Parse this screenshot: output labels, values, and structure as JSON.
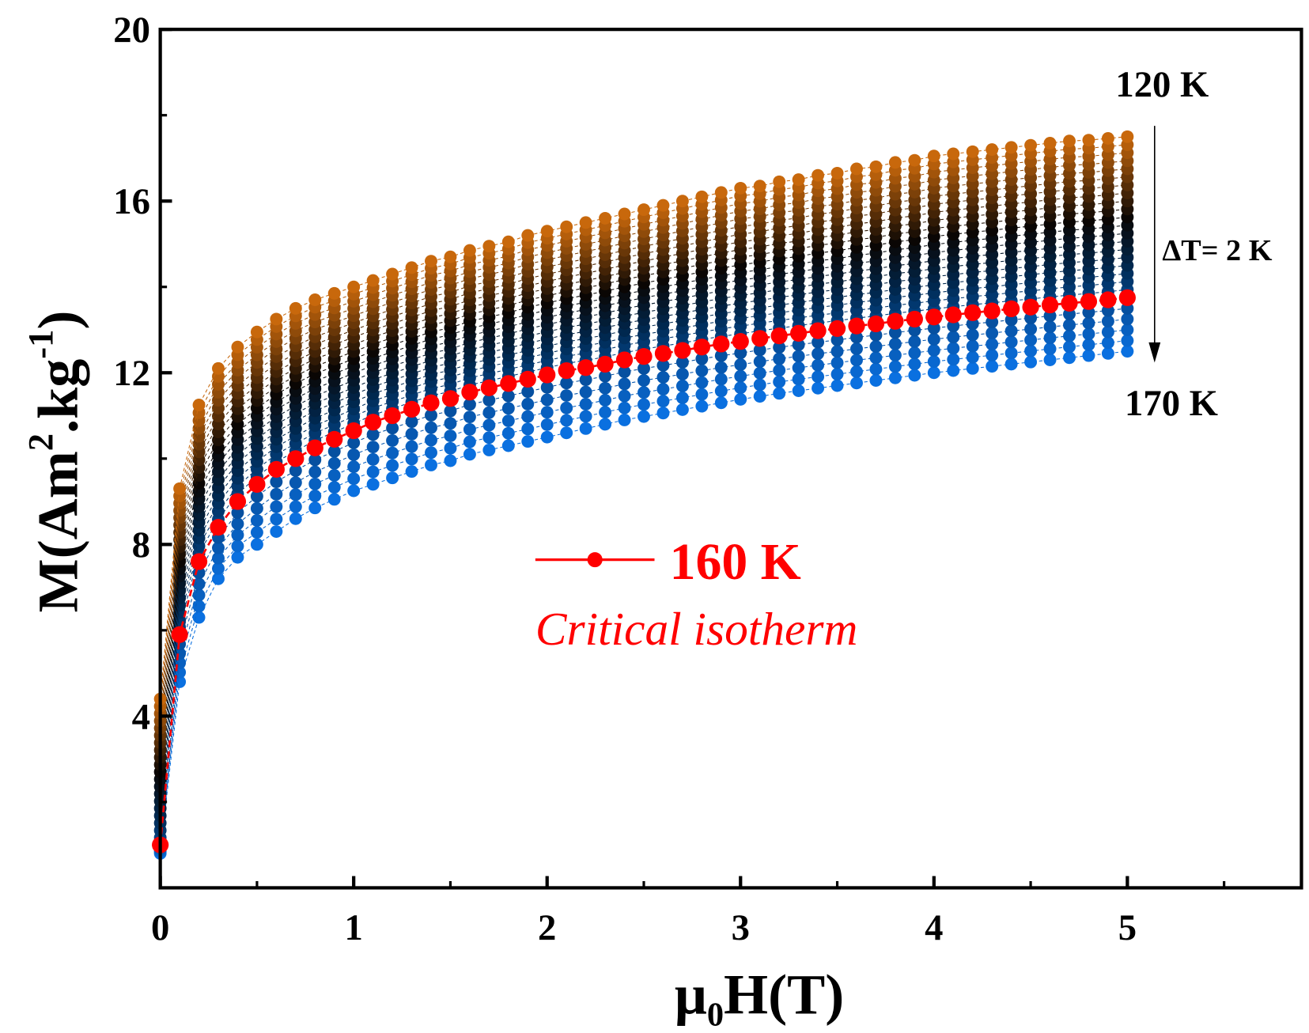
{
  "chart_data": {
    "type": "scatter",
    "xlabel": "μ0H(T)",
    "xlabel_main": "μ",
    "xlabel_sub": "0",
    "xlabel_rest": "H(T)",
    "ylabel": "M(Am2.kg-1)",
    "ylabel_parts": {
      "a": "M(Am",
      "sup1": "2",
      "b": ".kg",
      "sup2": "-1",
      "c": ")"
    },
    "xlim": [
      0,
      5.9
    ],
    "ylim": [
      0,
      20
    ],
    "xticks": [
      0,
      1,
      2,
      3,
      4,
      5
    ],
    "xtick_labels": [
      "0",
      "1",
      "2",
      "3",
      "4",
      "5"
    ],
    "xminor": [
      0.5,
      1.5,
      2.5,
      3.5,
      4.5,
      5.5
    ],
    "yticks": [
      4,
      8,
      12,
      16,
      20
    ],
    "ytick_labels": [
      "4",
      "8",
      "12",
      "16",
      "20"
    ],
    "yminor": [
      2,
      6,
      10,
      14,
      18
    ],
    "grid": false,
    "temperatures_K": [
      120,
      122,
      124,
      126,
      128,
      130,
      132,
      134,
      136,
      138,
      140,
      142,
      144,
      146,
      148,
      150,
      152,
      154,
      156,
      158,
      160,
      162,
      164,
      166,
      168,
      170
    ],
    "temperature_step_K": 2,
    "x": [
      0,
      0.1,
      0.2,
      0.3,
      0.4,
      0.5,
      0.6,
      0.7,
      0.8,
      0.9,
      1.0,
      1.1,
      1.2,
      1.3,
      1.4,
      1.5,
      1.6,
      1.7,
      1.8,
      1.9,
      2.0,
      2.1,
      2.2,
      2.3,
      2.4,
      2.5,
      2.6,
      2.7,
      2.8,
      2.9,
      3.0,
      3.1,
      3.2,
      3.3,
      3.4,
      3.5,
      3.6,
      3.7,
      3.8,
      3.9,
      4.0,
      4.1,
      4.2,
      4.3,
      4.4,
      4.5,
      4.6,
      4.7,
      4.8,
      4.9,
      5.0
    ],
    "anchor_series": [
      {
        "name": "120 K",
        "T": 120,
        "values": [
          4.4,
          9.3,
          11.25,
          12.1,
          12.6,
          12.95,
          13.25,
          13.5,
          13.7,
          13.85,
          14.0,
          14.15,
          14.3,
          14.45,
          14.6,
          14.7,
          14.85,
          14.95,
          15.05,
          15.2,
          15.3,
          15.4,
          15.5,
          15.6,
          15.7,
          15.8,
          15.9,
          16.0,
          16.1,
          16.2,
          16.3,
          16.35,
          16.45,
          16.5,
          16.6,
          16.65,
          16.75,
          16.8,
          16.9,
          16.95,
          17.05,
          17.1,
          17.15,
          17.2,
          17.25,
          17.3,
          17.35,
          17.4,
          17.42,
          17.46,
          17.5
        ]
      },
      {
        "name": "160 K",
        "T": 160,
        "values": [
          1.0,
          5.9,
          7.6,
          8.4,
          9.0,
          9.4,
          9.75,
          10.0,
          10.25,
          10.45,
          10.65,
          10.85,
          11.0,
          11.15,
          11.3,
          11.4,
          11.55,
          11.65,
          11.75,
          11.85,
          11.95,
          12.05,
          12.12,
          12.2,
          12.3,
          12.38,
          12.45,
          12.52,
          12.6,
          12.67,
          12.73,
          12.8,
          12.86,
          12.92,
          12.98,
          13.03,
          13.09,
          13.14,
          13.2,
          13.25,
          13.3,
          13.35,
          13.4,
          13.44,
          13.49,
          13.53,
          13.58,
          13.62,
          13.66,
          13.7,
          13.75
        ]
      },
      {
        "name": "170 K",
        "T": 170,
        "values": [
          0.8,
          4.8,
          6.3,
          7.2,
          7.7,
          8.0,
          8.3,
          8.6,
          8.85,
          9.05,
          9.25,
          9.4,
          9.55,
          9.7,
          9.85,
          9.95,
          10.1,
          10.2,
          10.3,
          10.4,
          10.5,
          10.6,
          10.7,
          10.8,
          10.9,
          10.98,
          11.06,
          11.14,
          11.22,
          11.3,
          11.38,
          11.45,
          11.52,
          11.58,
          11.64,
          11.7,
          11.76,
          11.82,
          11.88,
          11.94,
          12.0,
          12.05,
          12.1,
          12.15,
          12.2,
          12.25,
          12.3,
          12.35,
          12.4,
          12.45,
          12.5
        ]
      }
    ],
    "highlight_series": "160 K",
    "colors": {
      "hot": "#c8680c",
      "mid": "#0a0604",
      "navy": "#00284f",
      "cold": "#0a70e0",
      "highlight": "#ff0000"
    },
    "annotations": {
      "top_label": "120 K",
      "bottom_label": "170 K",
      "step_label": "ΔT= 2 K",
      "legend_label": "160 K",
      "legend_note": "Critical isotherm"
    }
  }
}
